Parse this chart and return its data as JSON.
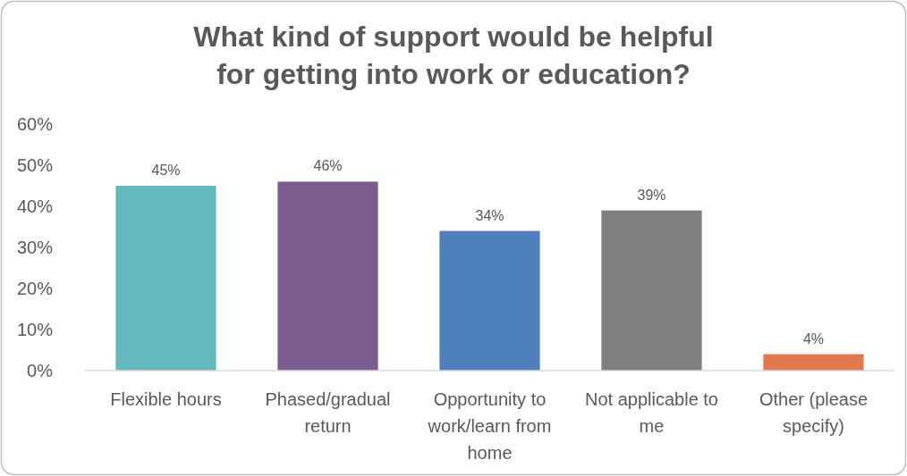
{
  "chart_data": {
    "type": "bar",
    "title": "What kind of support would be helpful for getting into work or education?",
    "categories": [
      "Flexible hours",
      "Phased/gradual return",
      "Opportunity to work/learn from home",
      "Not applicable to me",
      "Other (please specify)"
    ],
    "values": [
      45,
      46,
      34,
      39,
      4
    ],
    "colors": [
      "#62b8bc",
      "#7b5e8f",
      "#4e80bd",
      "#7f7f7f",
      "#e07a4a"
    ],
    "ylim": [
      0,
      60
    ],
    "yticks": [
      {
        "value": 0,
        "label": "0%"
      },
      {
        "value": 10,
        "label": "10%"
      },
      {
        "value": 20,
        "label": "20%"
      },
      {
        "value": 30,
        "label": "30%"
      },
      {
        "value": 40,
        "label": "40%"
      },
      {
        "value": 50,
        "label": "50%"
      },
      {
        "value": 60,
        "label": "60%"
      }
    ],
    "value_labels": [
      "45%",
      "46%",
      "34%",
      "39%",
      "4%"
    ],
    "grid": false
  }
}
